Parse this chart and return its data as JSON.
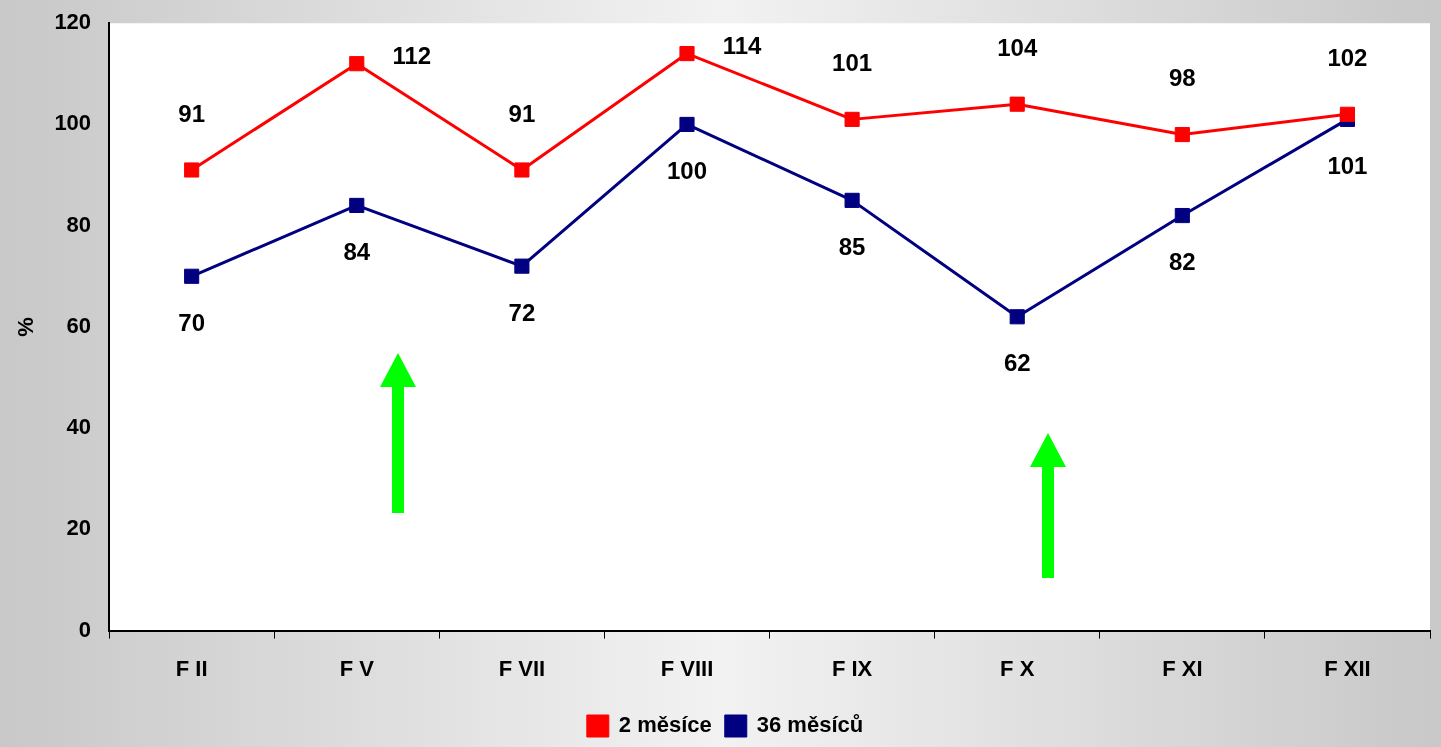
{
  "chart_data": {
    "type": "line",
    "ylabel": "%",
    "categories": [
      "F II",
      "F V",
      "F VII",
      "F VIII",
      "F IX",
      "F X",
      "F XI",
      "F XII"
    ],
    "series": [
      {
        "name": "2 měsíce",
        "color": "#ff0000",
        "values": [
          91,
          112,
          91,
          114,
          101,
          104,
          98,
          102
        ]
      },
      {
        "name": "36 měsíců",
        "color": "#000080",
        "values": [
          70,
          84,
          72,
          100,
          85,
          62,
          82,
          101
        ]
      }
    ],
    "ylim": [
      0,
      120
    ],
    "yticks": [
      0,
      20,
      40,
      60,
      80,
      100,
      120
    ],
    "data_labels": true,
    "legend": "bottom",
    "marker": "square",
    "line_style": "solid"
  }
}
